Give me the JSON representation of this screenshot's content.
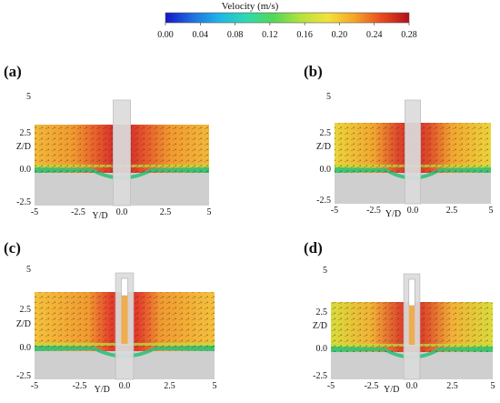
{
  "colorbar": {
    "title": "Velocity (m/s)",
    "ticks": [
      "0.00",
      "0.04",
      "0.08",
      "0.12",
      "0.16",
      "0.20",
      "0.24",
      "0.28"
    ],
    "colors": [
      "#1515c8",
      "#1f6fe0",
      "#1fb6e6",
      "#2fd9b0",
      "#52d855",
      "#b5e23c",
      "#f4e23a",
      "#f5a327",
      "#e84a1e",
      "#b30f1a"
    ]
  },
  "panels": [
    {
      "label": "(a)",
      "z_ticks": [
        "5",
        "2.5",
        "0.0",
        "-2.5"
      ],
      "y_ticks": [
        "-5",
        "-2.5",
        "0.0",
        "2.5",
        "5"
      ],
      "z_axis_label": "Z/D",
      "y_axis_label": "Y/D",
      "opening": false
    },
    {
      "label": "(b)",
      "z_ticks": [
        "5",
        "2.5",
        "0.0",
        "-2.5"
      ],
      "y_ticks": [
        "-5",
        "-2.5",
        "0.0",
        "2.5",
        "5"
      ],
      "z_axis_label": "Z/D",
      "y_axis_label": "Y/D",
      "opening": false
    },
    {
      "label": "(c)",
      "z_ticks": [
        "5",
        "2.5",
        "0.0",
        "-2.5"
      ],
      "y_ticks": [
        "-5",
        "-2.5",
        "0.0",
        "2.5",
        "5"
      ],
      "z_axis_label": "Z/D",
      "y_axis_label": "Y/D",
      "opening": true
    },
    {
      "label": "(d)",
      "z_ticks": [
        "5",
        "2.5",
        "0.0",
        "-2.5"
      ],
      "y_ticks": [
        "-5",
        "-2.5",
        "0.0",
        "2.5",
        "5"
      ],
      "z_axis_label": "Z/D",
      "y_axis_label": "Y/D",
      "opening": true
    }
  ]
}
